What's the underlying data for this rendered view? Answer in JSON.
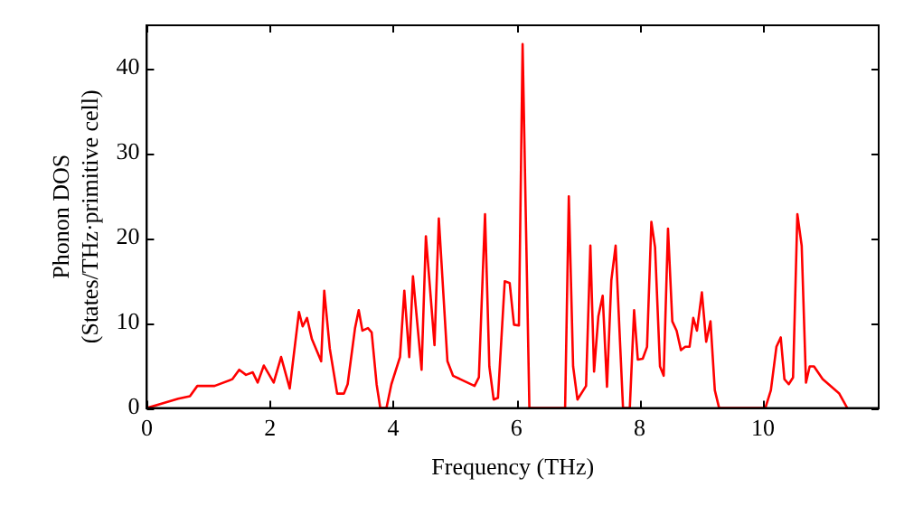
{
  "chart_data": {
    "type": "line",
    "xlabel": "Frequency (THz)",
    "ylabel": "Phonon DOS\n(States/THz·primitive cell)",
    "xlim": [
      0,
      11.88
    ],
    "ylim": [
      0,
      45
    ],
    "xticks": [
      0,
      2,
      4,
      6,
      8,
      10
    ],
    "yticks": [
      0,
      10,
      20,
      30,
      40
    ],
    "grid": false,
    "legend": false,
    "marker": "none",
    "line_style": "solid",
    "series": [
      {
        "color": "#ff0000",
        "x": [
          0,
          0.09,
          0.51,
          0.7,
          0.82,
          1.1,
          1.39,
          1.5,
          1.61,
          1.72,
          1.8,
          1.9,
          2.06,
          2.18,
          2.32,
          2.47,
          2.53,
          2.6,
          2.68,
          2.83,
          2.88,
          2.97,
          3.09,
          3.2,
          3.26,
          3.38,
          3.44,
          3.5,
          3.59,
          3.65,
          3.73,
          3.79,
          3.89,
          3.97,
          4.11,
          4.18,
          4.26,
          4.32,
          4.46,
          4.53,
          4.67,
          4.74,
          4.88,
          4.97,
          5.32,
          5.39,
          5.49,
          5.56,
          5.63,
          5.7,
          5.81,
          5.89,
          5.96,
          6.04,
          6.1,
          6.21,
          6.79,
          6.85,
          6.92,
          6.99,
          7.13,
          7.2,
          7.26,
          7.33,
          7.4,
          7.47,
          7.54,
          7.61,
          7.73,
          7.84,
          7.91,
          7.97,
          8.05,
          8.12,
          8.19,
          8.25,
          8.33,
          8.39,
          8.46,
          8.53,
          8.6,
          8.67,
          8.74,
          8.81,
          8.87,
          8.93,
          9.01,
          9.08,
          9.15,
          9.22,
          9.29,
          10.04,
          10.13,
          10.22,
          10.29,
          10.35,
          10.42,
          10.49,
          10.56,
          10.63,
          10.7,
          10.76,
          10.83,
          10.97,
          11.24,
          11.37
        ],
        "values": [
          0,
          0.2,
          1.1,
          1.4,
          2.6,
          2.6,
          3.4,
          4.5,
          3.9,
          4.2,
          3,
          5,
          3,
          6,
          2.3,
          11.3,
          9.6,
          10.6,
          8.1,
          5.5,
          13.8,
          7,
          1.7,
          1.7,
          2.8,
          9.4,
          11.5,
          9.1,
          9.4,
          8.9,
          2.8,
          0,
          0,
          2.8,
          6,
          13.8,
          6,
          15.5,
          4.5,
          20.2,
          7.4,
          22.3,
          5.5,
          3.8,
          2.6,
          3.6,
          22.8,
          4.9,
          1,
          1.2,
          14.9,
          14.7,
          9.8,
          9.7,
          42.8,
          0,
          0,
          24.9,
          4.9,
          1,
          2.6,
          19.1,
          4.3,
          10.8,
          13.2,
          2.5,
          15,
          19.1,
          0,
          0,
          11.5,
          5.7,
          5.8,
          7.2,
          21.9,
          18.9,
          4.9,
          3.8,
          21.1,
          10.2,
          9.1,
          6.8,
          7.2,
          7.2,
          10.6,
          9.1,
          13.6,
          7.8,
          10.2,
          2.1,
          0,
          0,
          2.1,
          7.2,
          8.3,
          3.4,
          2.8,
          3.6,
          22.8,
          19.1,
          3,
          4.9,
          4.9,
          3.4,
          1.7,
          0
        ]
      }
    ]
  }
}
